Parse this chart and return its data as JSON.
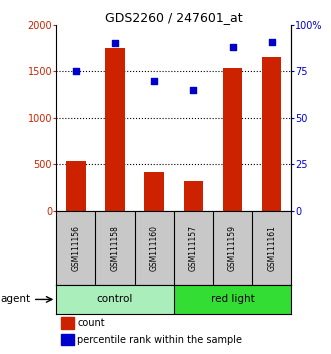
{
  "title": "GDS2260 / 247601_at",
  "samples": [
    "GSM111156",
    "GSM111158",
    "GSM111160",
    "GSM111157",
    "GSM111159",
    "GSM111161"
  ],
  "counts": [
    530,
    1750,
    420,
    320,
    1540,
    1650
  ],
  "percentiles": [
    75,
    90,
    70,
    65,
    88,
    91
  ],
  "bar_color": "#CC2200",
  "dot_color": "#0000CC",
  "left_ylim": [
    0,
    2000
  ],
  "right_ylim": [
    0,
    100
  ],
  "left_yticks": [
    0,
    500,
    1000,
    1500,
    2000
  ],
  "right_yticks": [
    0,
    25,
    50,
    75,
    100
  ],
  "right_yticklabels": [
    "0",
    "25",
    "50",
    "75",
    "100%"
  ],
  "left_ycolor": "#CC2200",
  "right_ycolor": "#0000CC",
  "gridlines": [
    500,
    1000,
    1500
  ],
  "control_color": "#AAEEBB",
  "redlight_color": "#33DD33",
  "sample_box_color": "#C8C8C8",
  "agent_label": "agent",
  "legend_count": "count",
  "legend_percentile": "percentile rank within the sample"
}
